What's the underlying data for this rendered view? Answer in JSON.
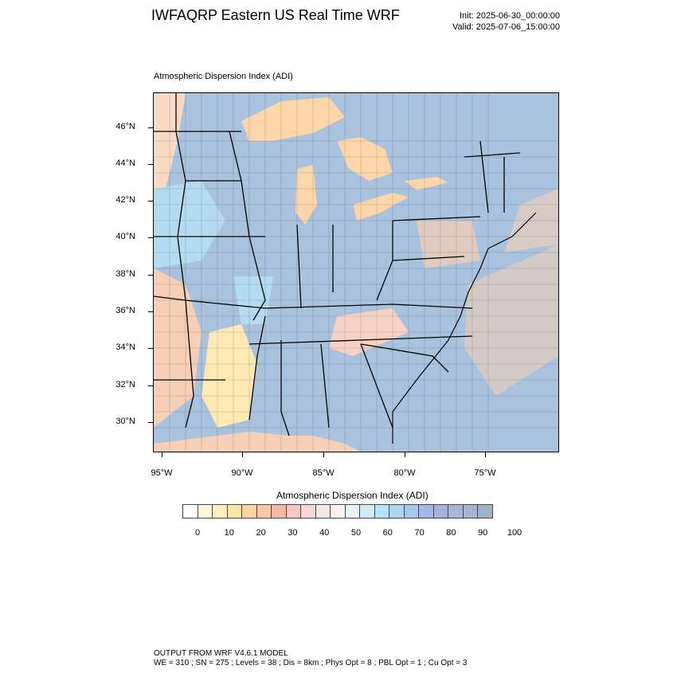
{
  "header": {
    "title": "IWFAQRP Eastern US Real Time WRF",
    "init": "Init: 2025-06-30_00:00:00",
    "valid": "Valid: 2025-07-06_15:00:00"
  },
  "map": {
    "label": "Atmospheric Dispersion Index   (ADI)",
    "lat_ticks": [
      "46°N",
      "44°N",
      "42°N",
      "40°N",
      "38°N",
      "36°N",
      "34°N",
      "32°N",
      "30°N"
    ],
    "lon_ticks": [
      "95°W",
      "90°W",
      "85°W",
      "80°W",
      "75°W"
    ],
    "colors": {
      "land_high": "#a9c2de",
      "land_mid": "#b4dcf0",
      "low_warm": "#fbd4b8",
      "low_yellow": "#fde9b4",
      "lake": "#fcd6a8",
      "ocean": "#d8e6f2",
      "border": "#000000"
    }
  },
  "colorbar": {
    "title": "Atmospheric Dispersion Index  (ADI)",
    "labels": [
      "0",
      "10",
      "20",
      "30",
      "40",
      "50",
      "60",
      "70",
      "80",
      "90",
      "100"
    ],
    "colors": [
      "#ffffff",
      "#fff8d6",
      "#ffefc0",
      "#ffe3a8",
      "#fcd5a0",
      "#f7c6a8",
      "#f4b6a6",
      "#f6c6c0",
      "#f9d8d6",
      "#fbe6e6",
      "#fdf2f2",
      "#eaf2fb",
      "#d2ebfa",
      "#b8e2f8",
      "#a8d8f2",
      "#a7c8ee",
      "#a4b8e8",
      "#a6b2de",
      "#a9b4d8",
      "#a7b4cf",
      "#9fb2c9"
    ]
  },
  "footer": {
    "line1": "OUTPUT FROM WRF V4.6.1 MODEL",
    "line2": "WE = 310 ; SN = 275 ; Levels = 38 ; Dis = 8km ; Phys Opt = 8 ; PBL Opt = 1 ; Cu Opt = 3"
  }
}
